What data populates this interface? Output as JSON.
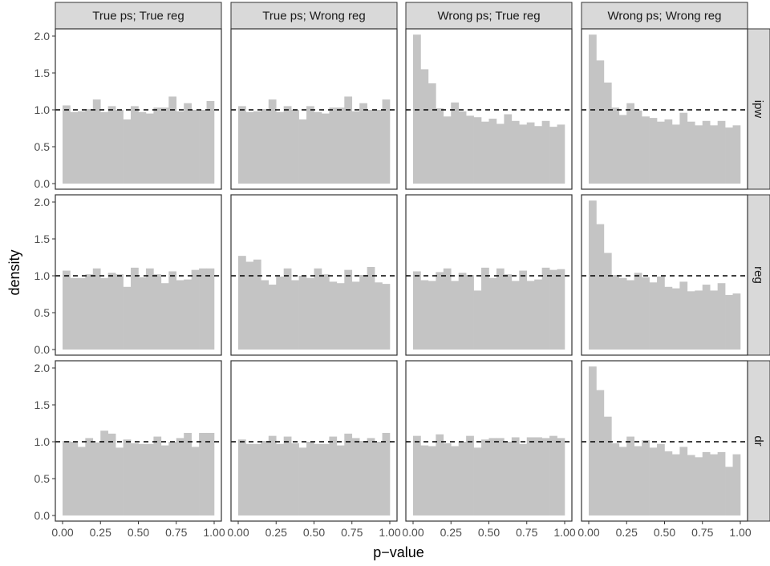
{
  "chart_data": {
    "type": "bar",
    "facet_columns": [
      "True ps; True reg",
      "True ps; Wrong reg",
      "Wrong ps; True reg",
      "Wrong ps; Wrong reg"
    ],
    "facet_rows": [
      "ipw",
      "reg",
      "dr"
    ],
    "xlabel": "p−value",
    "ylabel": "density",
    "xlim": [
      0,
      1
    ],
    "ylim": [
      0,
      2.0
    ],
    "x_ticks": [
      "0.00",
      "0.25",
      "0.50",
      "0.75",
      "1.00"
    ],
    "y_ticks": [
      "0.0",
      "0.5",
      "1.0",
      "1.5",
      "2.0"
    ],
    "reference_line": 1.0,
    "bin_width": 0.05,
    "bar_color": "#c4c4c4",
    "panels": [
      [
        [
          1.06,
          0.97,
          0.98,
          1.01,
          1.14,
          0.97,
          1.05,
          1.0,
          0.87,
          1.05,
          0.97,
          0.95,
          1.03,
          1.03,
          1.18,
          0.98,
          1.09,
          1.0,
          1.0,
          1.12
        ],
        [
          1.05,
          0.97,
          0.98,
          1.01,
          1.14,
          0.97,
          1.05,
          1.0,
          0.87,
          1.05,
          0.97,
          0.95,
          1.03,
          1.03,
          1.18,
          0.98,
          1.09,
          1.0,
          1.0,
          1.14
        ],
        [
          2.02,
          1.55,
          1.36,
          1.02,
          0.91,
          1.1,
          0.98,
          0.92,
          0.9,
          0.84,
          0.88,
          0.81,
          0.94,
          0.85,
          0.8,
          0.83,
          0.78,
          0.85,
          0.77,
          0.8
        ],
        [
          2.02,
          1.67,
          1.37,
          1.03,
          0.93,
          1.09,
          0.99,
          0.91,
          0.89,
          0.84,
          0.87,
          0.8,
          0.96,
          0.84,
          0.79,
          0.85,
          0.79,
          0.85,
          0.76,
          0.79
        ]
      ],
      [
        [
          1.07,
          0.97,
          0.97,
          1.02,
          1.1,
          0.97,
          1.04,
          1.02,
          0.85,
          1.11,
          0.98,
          1.1,
          1.02,
          0.9,
          1.06,
          0.94,
          0.95,
          1.08,
          1.1,
          1.1
        ],
        [
          1.27,
          1.19,
          1.22,
          0.94,
          0.88,
          0.99,
          1.1,
          0.94,
          1.0,
          0.97,
          1.1,
          1.02,
          0.92,
          0.9,
          1.08,
          0.92,
          1.01,
          1.12,
          0.91,
          0.89
        ],
        [
          1.06,
          0.94,
          0.93,
          1.05,
          1.1,
          0.93,
          1.04,
          1.01,
          0.8,
          1.11,
          0.97,
          1.1,
          1.02,
          0.93,
          1.07,
          0.93,
          0.95,
          1.11,
          1.08,
          1.09
        ],
        [
          2.02,
          1.7,
          1.31,
          1.01,
          0.97,
          0.94,
          1.04,
          0.98,
          0.91,
          0.99,
          0.85,
          0.83,
          0.92,
          0.79,
          0.8,
          0.88,
          0.8,
          0.9,
          0.74,
          0.76
        ]
      ],
      [
        [
          1.01,
          1.0,
          0.93,
          1.05,
          0.99,
          1.15,
          1.11,
          0.92,
          1.03,
          0.98,
          0.97,
          0.97,
          1.07,
          0.95,
          1.0,
          1.05,
          1.12,
          0.93,
          1.12,
          1.12
        ],
        [
          1.03,
          0.97,
          0.97,
          1.01,
          1.08,
          0.97,
          1.07,
          0.98,
          0.92,
          1.0,
          0.97,
          0.97,
          1.07,
          0.95,
          1.11,
          1.05,
          1.01,
          1.05,
          1.0,
          1.12
        ],
        [
          1.08,
          0.95,
          0.94,
          1.1,
          0.98,
          0.94,
          1.0,
          1.08,
          0.92,
          1.03,
          1.05,
          1.05,
          1.0,
          1.06,
          0.97,
          1.06,
          1.06,
          1.05,
          1.08,
          1.05
        ],
        [
          2.02,
          1.7,
          1.34,
          0.98,
          0.93,
          1.07,
          0.94,
          1.02,
          0.92,
          0.97,
          0.87,
          0.83,
          0.93,
          0.82,
          0.79,
          0.86,
          0.83,
          0.86,
          0.66,
          0.83
        ]
      ]
    ]
  }
}
